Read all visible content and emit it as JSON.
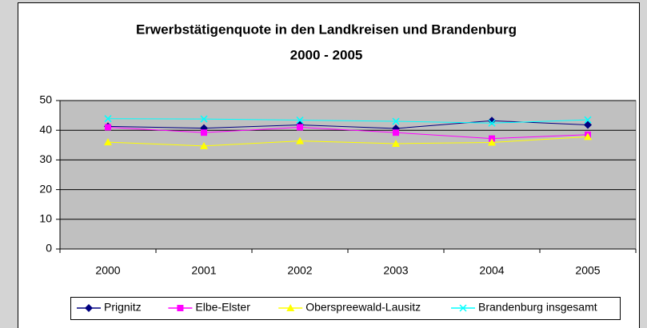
{
  "chart_data": {
    "type": "line",
    "title": "Erwerbstätigenquote in den Landkreisen und Brandenburg",
    "subtitle": "2000 - 2005",
    "categories": [
      "2000",
      "2001",
      "2002",
      "2003",
      "2004",
      "2005"
    ],
    "series": [
      {
        "name": "Prignitz",
        "color": "#000080",
        "marker": "diamond",
        "values": [
          41.3,
          40.7,
          41.8,
          40.6,
          43.2,
          41.8
        ]
      },
      {
        "name": "Elbe-Elster",
        "color": "#ff00ff",
        "marker": "square",
        "values": [
          41.0,
          39.2,
          41.0,
          39.2,
          37.2,
          38.5
        ]
      },
      {
        "name": "Oberspreewald-Lausitz",
        "color": "#ffff00",
        "marker": "triangle",
        "values": [
          36.0,
          34.7,
          36.4,
          35.5,
          35.9,
          37.8
        ]
      },
      {
        "name": "Brandenburg insgesamt",
        "color": "#00ffff",
        "marker": "x",
        "values": [
          43.9,
          43.8,
          43.4,
          43.0,
          42.4,
          43.5
        ]
      }
    ],
    "ylim": [
      0,
      50
    ],
    "yticks": [
      0,
      10,
      20,
      30,
      40,
      50
    ],
    "grid": true
  }
}
